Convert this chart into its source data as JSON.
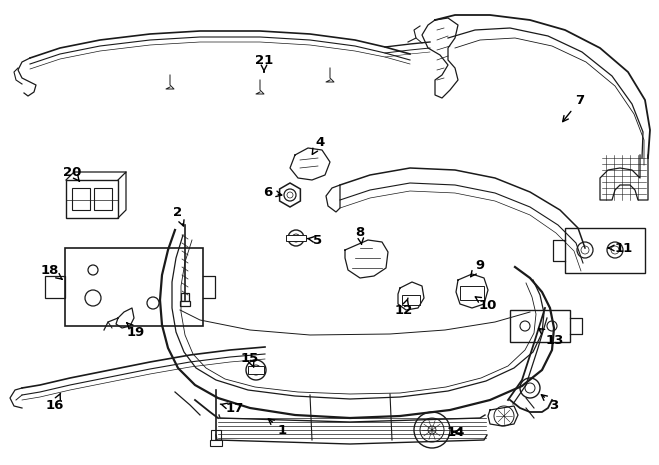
{
  "bg_color": "#ffffff",
  "line_color": "#1a1a1a",
  "text_color": "#000000",
  "label_fontsize": 9.5,
  "label_fontweight": "bold",
  "fig_width": 6.59,
  "fig_height": 4.65,
  "dpi": 100,
  "imgW": 659,
  "imgH": 465
}
